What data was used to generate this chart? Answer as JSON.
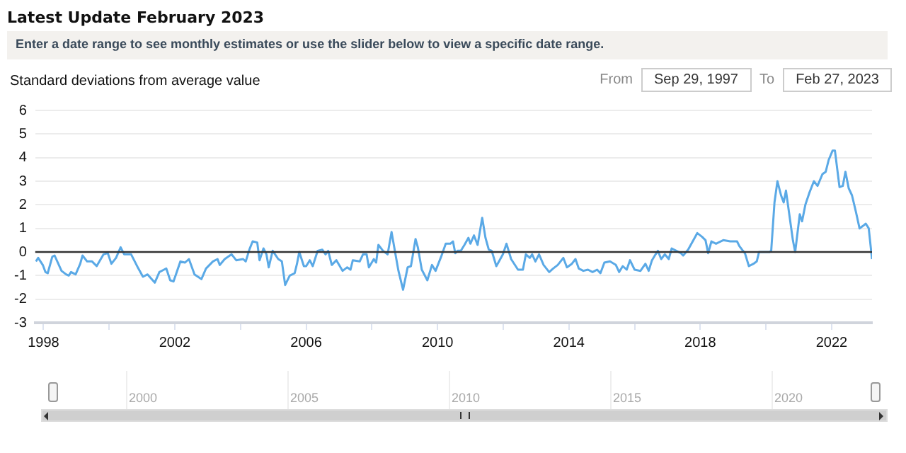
{
  "chart_data": {
    "type": "line",
    "title": "Latest Update February 2023",
    "subtitle": "Enter a date range to see monthly estimates or use the slider below to view a specific date range.",
    "ylabel": "Standard deviations from average value",
    "annotations": [
      "From",
      "Sep 29, 1997",
      "To",
      "Feb 27, 2023",
      "2000",
      "2005",
      "2010",
      "2015",
      "2020"
    ],
    "series": [
      {
        "color": "#5aa9e6",
        "x": [
          1997.77,
          1997.84,
          1997.98,
          1998.06,
          1998.13,
          1998.27,
          1998.34,
          1998.55,
          1998.69,
          1998.77,
          1998.84,
          1998.98,
          1999.12,
          1999.19,
          1999.33,
          1999.48,
          1999.55,
          1999.62,
          1999.83,
          1999.96,
          2000.07,
          2000.21,
          2000.35,
          2000.46,
          2000.67,
          2000.89,
          2001.03,
          2001.17,
          2001.39,
          2001.53,
          2001.67,
          2001.74,
          2001.86,
          2001.96,
          2002.17,
          2002.31,
          2002.43,
          2002.6,
          2002.81,
          2002.95,
          2003.16,
          2003.3,
          2003.37,
          2003.52,
          2003.73,
          2003.87,
          2004.08,
          2004.16,
          2004.27,
          2004.37,
          2004.51,
          2004.58,
          2004.7,
          2004.79,
          2004.86,
          2004.98,
          2005.15,
          2005.26,
          2005.36,
          2005.5,
          2005.65,
          2005.72,
          2005.79,
          2005.93,
          2006.0,
          2006.11,
          2006.2,
          2006.35,
          2006.49,
          2006.59,
          2006.67,
          2006.78,
          2006.92,
          2007.11,
          2007.25,
          2007.35,
          2007.42,
          2007.63,
          2007.73,
          2007.84,
          2007.91,
          2008.06,
          2008.13,
          2008.2,
          2008.34,
          2008.48,
          2008.6,
          2008.7,
          2008.81,
          2008.95,
          2009.09,
          2009.19,
          2009.33,
          2009.4,
          2009.52,
          2009.69,
          2009.83,
          2009.94,
          2010.11,
          2010.25,
          2010.39,
          2010.47,
          2010.54,
          2010.61,
          2010.71,
          2010.82,
          2010.94,
          2011.0,
          2011.11,
          2011.22,
          2011.36,
          2011.46,
          2011.56,
          2011.65,
          2011.79,
          2011.89,
          2011.99,
          2012.1,
          2012.24,
          2012.31,
          2012.45,
          2012.6,
          2012.69,
          2012.81,
          2012.88,
          2012.98,
          2013.09,
          2013.23,
          2013.4,
          2013.52,
          2013.66,
          2013.83,
          2013.94,
          2014.09,
          2014.2,
          2014.3,
          2014.44,
          2014.58,
          2014.72,
          2014.86,
          2014.96,
          2015.08,
          2015.25,
          2015.43,
          2015.53,
          2015.64,
          2015.76,
          2015.86,
          2016.0,
          2016.18,
          2016.33,
          2016.43,
          2016.53,
          2016.64,
          2016.71,
          2016.81,
          2016.92,
          2017.04,
          2017.13,
          2017.27,
          2017.41,
          2017.48,
          2017.63,
          2017.77,
          2017.91,
          2018.05,
          2018.16,
          2018.24,
          2018.34,
          2018.48,
          2018.7,
          2018.91,
          2019.12,
          2019.19,
          2019.3,
          2019.36,
          2019.48,
          2019.62,
          2019.72,
          2019.79,
          2019.97,
          2020.11,
          2020.16,
          2020.26,
          2020.35,
          2020.46,
          2020.54,
          2020.61,
          2020.72,
          2020.82,
          2020.89,
          2020.96,
          2021.03,
          2021.1,
          2021.2,
          2021.32,
          2021.46,
          2021.57,
          2021.72,
          2021.82,
          2021.91,
          2022.03,
          2022.1,
          2022.24,
          2022.34,
          2022.42,
          2022.52,
          2022.62,
          2022.74,
          2022.85,
          2022.95,
          2023.04,
          2023.13,
          2023.23
        ],
        "values": [
          -0.4,
          -0.25,
          -0.55,
          -0.85,
          -0.9,
          -0.2,
          -0.15,
          -0.8,
          -0.95,
          -1.0,
          -0.85,
          -0.95,
          -0.5,
          -0.15,
          -0.4,
          -0.4,
          -0.5,
          -0.6,
          -0.1,
          -0.05,
          -0.5,
          -0.25,
          0.2,
          -0.1,
          -0.1,
          -0.7,
          -1.05,
          -0.95,
          -1.3,
          -0.85,
          -0.75,
          -0.7,
          -1.2,
          -1.25,
          -0.4,
          -0.45,
          -0.3,
          -0.95,
          -1.15,
          -0.7,
          -0.4,
          -0.3,
          -0.55,
          -0.3,
          -0.1,
          -0.35,
          -0.3,
          -0.4,
          0.1,
          0.45,
          0.4,
          -0.35,
          0.15,
          -0.1,
          -0.65,
          0.05,
          -0.3,
          -0.4,
          -1.4,
          -1.0,
          -0.9,
          -0.5,
          0.0,
          -0.6,
          -0.6,
          -0.35,
          -0.6,
          0.05,
          0.1,
          -0.1,
          0.05,
          -0.55,
          -0.35,
          -0.8,
          -0.65,
          -0.75,
          -0.35,
          -0.4,
          -0.1,
          -0.1,
          -0.65,
          -0.3,
          -0.45,
          0.3,
          0.05,
          -0.1,
          0.85,
          0.05,
          -0.8,
          -1.6,
          -0.65,
          -0.6,
          0.55,
          0.2,
          -0.75,
          -1.2,
          -0.55,
          -0.8,
          -0.2,
          0.35,
          0.35,
          0.45,
          -0.05,
          0.05,
          0.05,
          0.3,
          0.6,
          0.35,
          0.7,
          0.3,
          1.45,
          0.6,
          0.1,
          0.05,
          -0.6,
          -0.35,
          -0.1,
          0.35,
          -0.3,
          -0.45,
          -0.75,
          -0.75,
          -0.1,
          -0.25,
          -0.1,
          -0.4,
          -0.1,
          -0.55,
          -0.85,
          -0.7,
          -0.55,
          -0.25,
          -0.65,
          -0.5,
          -0.3,
          -0.7,
          -0.8,
          -0.75,
          -0.85,
          -0.75,
          -0.9,
          -0.45,
          -0.4,
          -0.55,
          -0.85,
          -0.6,
          -0.75,
          -0.35,
          -0.75,
          -0.8,
          -0.5,
          -0.8,
          -0.35,
          -0.1,
          0.05,
          -0.3,
          -0.1,
          -0.3,
          0.15,
          0.05,
          -0.05,
          -0.15,
          0.1,
          0.45,
          0.8,
          0.65,
          0.5,
          -0.05,
          0.45,
          0.35,
          0.5,
          0.45,
          0.45,
          0.25,
          0.05,
          -0.05,
          -0.6,
          -0.5,
          -0.4,
          0.0,
          0.0,
          0.0,
          0.05,
          2.1,
          3.0,
          2.4,
          2.1,
          2.6,
          1.5,
          0.5,
          0.0,
          0.8,
          1.6,
          1.3,
          2.0,
          2.5,
          3.0,
          2.8,
          3.3,
          3.4,
          3.9,
          4.3,
          4.3,
          2.75,
          2.8,
          3.4,
          2.7,
          2.4,
          1.7,
          1.0,
          1.1,
          1.2,
          1.0,
          -0.3
        ]
      }
    ],
    "xlim": [
      1997.75,
      2023.23
    ],
    "xticks": [
      1998,
      {
        "value": 2000,
        "label": null
      },
      2002,
      {
        "value": 2004,
        "label": null
      },
      2006,
      {
        "value": 2008,
        "label": null
      },
      2010,
      {
        "value": 2012,
        "label": null
      },
      2014,
      {
        "value": 2016,
        "label": null
      },
      2018,
      {
        "value": 2020,
        "label": null
      },
      2022
    ],
    "ylim": [
      -3,
      6
    ],
    "yticks": [
      -3,
      -2,
      -1,
      0,
      1,
      2,
      3,
      4,
      5,
      6
    ],
    "ref_lines": [
      {
        "axis": "y",
        "value": 0,
        "color": "#333333"
      }
    ],
    "grid": "y",
    "legend": false,
    "marker": "none",
    "line_style": "solid"
  }
}
